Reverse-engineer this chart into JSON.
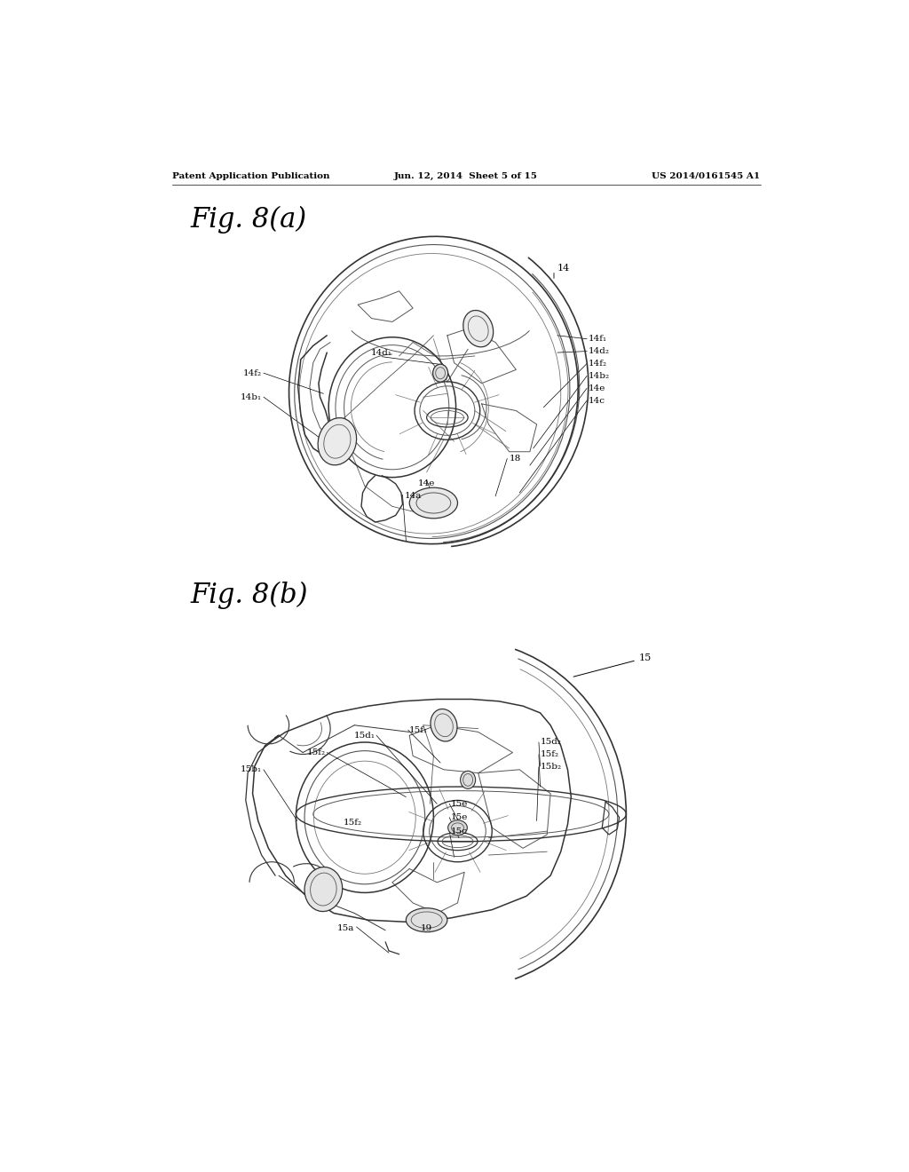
{
  "bg_color": "#ffffff",
  "header_left": "Patent Application Publication",
  "header_mid": "Jun. 12, 2014  Sheet 5 of 15",
  "header_right": "US 2014/0161545 A1",
  "fig_a_label": "Fig. 8(a)",
  "fig_b_label": "Fig. 8(b)",
  "page_width": 10.24,
  "page_height": 13.2,
  "dpi": 100
}
